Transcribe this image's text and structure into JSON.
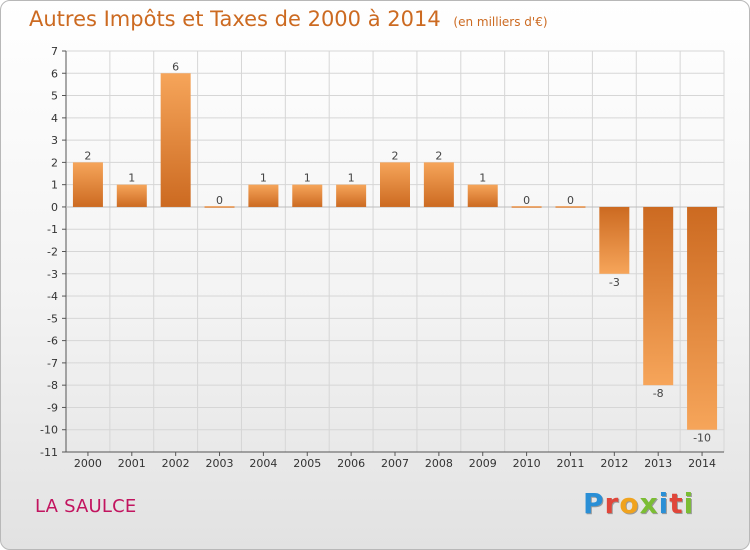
{
  "header": {
    "title": "Autres Impôts et Taxes de 2000 à 2014",
    "subtitle": "(en milliers d'€)"
  },
  "footer": {
    "place": "LA SAULCE",
    "logo": "Proxiti"
  },
  "colors": {
    "title": "#cc6a21",
    "place": "#c2145f",
    "bar_light": "#f6a55a",
    "bar_dark": "#cc6a21",
    "logo_letters": [
      "#2a8fd6",
      "#e0463a",
      "#f0a31e",
      "#7bbd34",
      "#2a8fd6",
      "#e0463a",
      "#7bbd34"
    ]
  },
  "chart_data": {
    "type": "bar",
    "categories": [
      "2000",
      "2001",
      "2002",
      "2003",
      "2004",
      "2005",
      "2006",
      "2007",
      "2008",
      "2009",
      "2010",
      "2011",
      "2012",
      "2013",
      "2014"
    ],
    "values": [
      2,
      1,
      6,
      0,
      1,
      1,
      1,
      2,
      2,
      1,
      0,
      0,
      -3,
      -8,
      -10
    ],
    "data_labels": [
      "2",
      "1",
      "6",
      "0",
      "1",
      "1",
      "1",
      "2",
      "2",
      "1",
      "0",
      "0",
      "-3",
      "-8",
      "-10"
    ],
    "y_ticks": [
      "7",
      "6",
      "5",
      "4",
      "3",
      "2",
      "1",
      "0",
      "-1",
      "-2",
      "-3",
      "-4",
      "-5",
      "-6",
      "-7",
      "-8",
      "-9",
      "-10",
      "-11"
    ],
    "ylim": [
      -11,
      7
    ],
    "grid": true,
    "legend": "none"
  }
}
